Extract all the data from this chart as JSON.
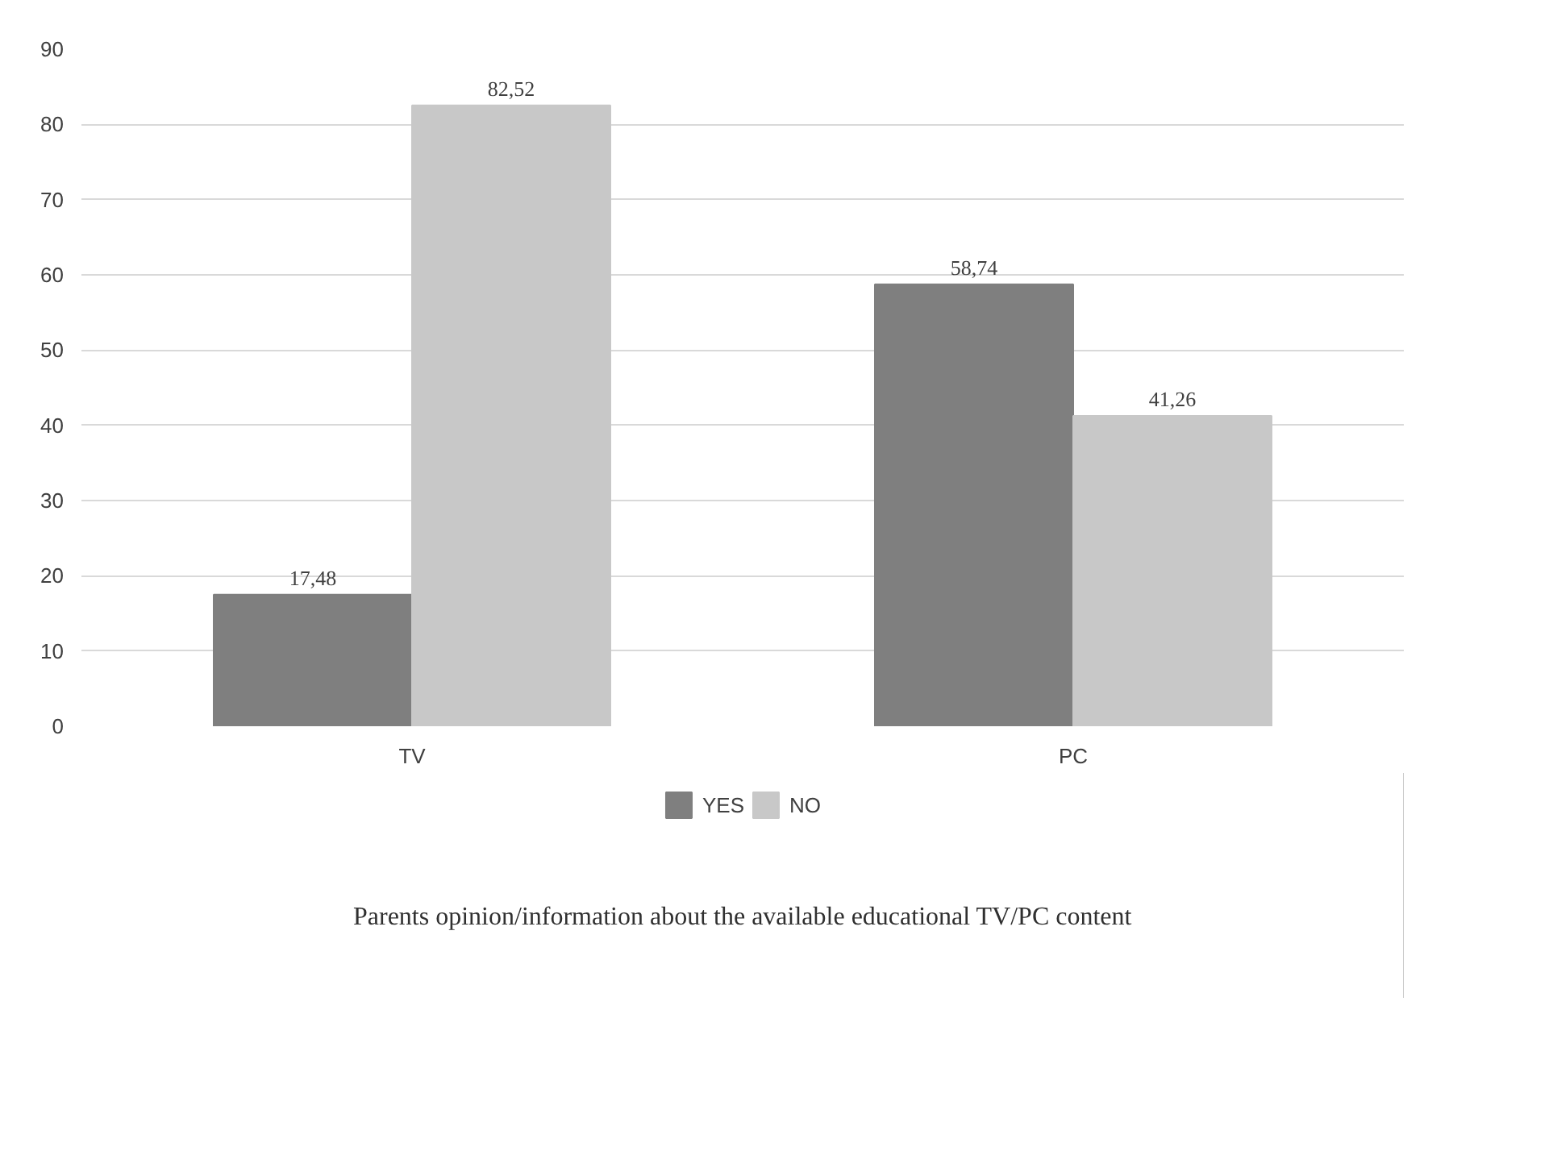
{
  "chart_data": {
    "type": "bar",
    "title": "Parents opinion/information about the available educational TV/PC content",
    "categories": [
      "TV",
      "PC"
    ],
    "series": [
      {
        "name": "YES",
        "color": "#7f7f7f",
        "values": [
          17.48,
          58.74
        ],
        "value_labels": [
          "17,48",
          "58,74"
        ]
      },
      {
        "name": "NO",
        "color": "#c8c8c8",
        "values": [
          82.52,
          41.26
        ],
        "value_labels": [
          "82,52",
          "41,26"
        ]
      }
    ],
    "ylim": [
      0,
      90
    ],
    "yticks": [
      0,
      10,
      20,
      30,
      40,
      50,
      60,
      70,
      80,
      90
    ],
    "grid": "y",
    "legend": "bottom"
  }
}
